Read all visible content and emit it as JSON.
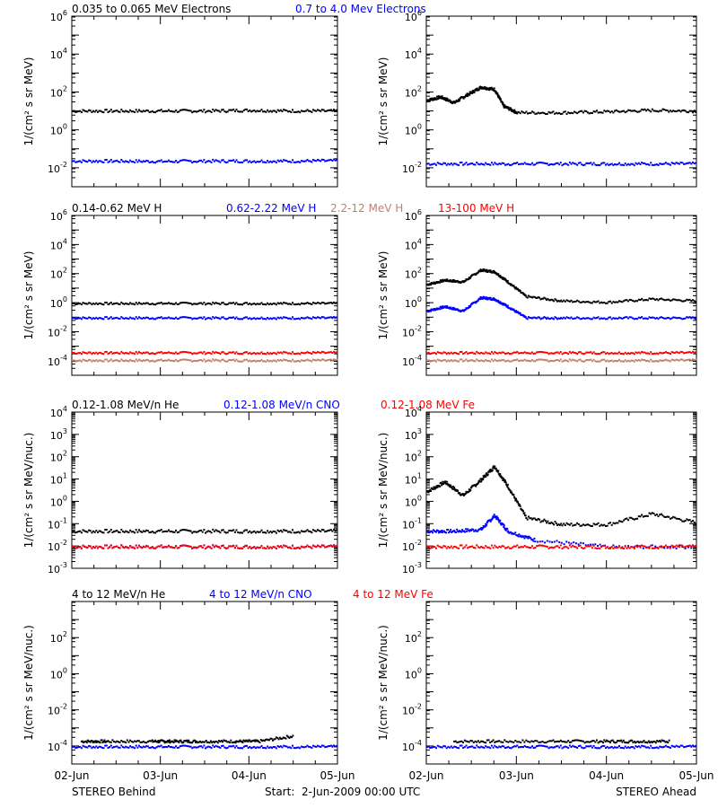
{
  "colors": {
    "black": "#000000",
    "blue": "#0000ff",
    "red": "#ff0000",
    "tan": "#c08070"
  },
  "rows": [
    {
      "legend": [
        {
          "text": "0.035 to 0.065 MeV Electrons",
          "color": "#000000"
        },
        {
          "text": "0.7 to 4.0 Mev Electrons",
          "color": "#0000ff"
        }
      ],
      "ylabel": "1/(cm² s sr MeV)",
      "ylog": [
        -3,
        6
      ],
      "yticks": [
        {
          "exp": -2,
          "label": "10",
          "sup": "-2"
        },
        {
          "exp": 0,
          "label": "10",
          "sup": "0"
        },
        {
          "exp": 2,
          "label": "10",
          "sup": "2"
        },
        {
          "exp": 4,
          "label": "10",
          "sup": "4"
        },
        {
          "exp": 6,
          "label": "10",
          "sup": "6"
        }
      ]
    },
    {
      "legend": [
        {
          "text": "0.14-0.62 MeV H",
          "color": "#000000"
        },
        {
          "text": "0.62-2.22 MeV H",
          "color": "#0000ff"
        },
        {
          "text": "2.2-12 MeV H",
          "color": "#c08070"
        },
        {
          "text": "13-100 MeV H",
          "color": "#ff0000"
        }
      ],
      "ylabel": "1/(cm² s sr MeV)",
      "ylog": [
        -5,
        6
      ],
      "yticks": [
        {
          "exp": -4,
          "label": "10",
          "sup": "-4"
        },
        {
          "exp": -2,
          "label": "10",
          "sup": "-2"
        },
        {
          "exp": 0,
          "label": "10",
          "sup": "0"
        },
        {
          "exp": 2,
          "label": "10",
          "sup": "2"
        },
        {
          "exp": 4,
          "label": "10",
          "sup": "4"
        },
        {
          "exp": 6,
          "label": "10",
          "sup": "6"
        }
      ]
    },
    {
      "legend": [
        {
          "text": "0.12-1.08 MeV/n He",
          "color": "#000000"
        },
        {
          "text": "0.12-1.08 MeV/n CNO",
          "color": "#0000ff"
        },
        {
          "text": "0.12-1.08 MeV Fe",
          "color": "#ff0000"
        }
      ],
      "ylabel": "1/(cm² s sr MeV/nuc.)",
      "ylog": [
        -3,
        4
      ],
      "yticks": [
        {
          "exp": -3,
          "label": "10",
          "sup": "-3"
        },
        {
          "exp": -2,
          "label": "10",
          "sup": "-2"
        },
        {
          "exp": -1,
          "label": "10",
          "sup": "-1"
        },
        {
          "exp": 0,
          "label": "10",
          "sup": "0"
        },
        {
          "exp": 1,
          "label": "10",
          "sup": "1"
        },
        {
          "exp": 2,
          "label": "10",
          "sup": "2"
        },
        {
          "exp": 3,
          "label": "10",
          "sup": "3"
        },
        {
          "exp": 4,
          "label": "10",
          "sup": "4"
        }
      ]
    },
    {
      "legend": [
        {
          "text": "4 to 12 MeV/n He",
          "color": "#000000"
        },
        {
          "text": "4 to 12 MeV/n CNO",
          "color": "#0000ff"
        },
        {
          "text": "4 to 12 MeV Fe",
          "color": "#ff0000"
        }
      ],
      "ylabel": "1/(cm² s sr MeV/nuc.)",
      "ylog": [
        -5,
        4
      ],
      "yticks": [
        {
          "exp": -4,
          "label": "10",
          "sup": "-4"
        },
        {
          "exp": -2,
          "label": "10",
          "sup": "-2"
        },
        {
          "exp": 0,
          "label": "10",
          "sup": "0"
        },
        {
          "exp": 2,
          "label": "10",
          "sup": "2"
        }
      ]
    }
  ],
  "xticks": [
    "02-Jun",
    "03-Jun",
    "04-Jun",
    "05-Jun"
  ],
  "footer": {
    "left": "STEREO Behind",
    "center": "Start:  2-Jun-2009 00:00 UTC",
    "right": "STEREO Ahead"
  },
  "chart_data": [
    {
      "type": "scatter",
      "panel": "row1-behind",
      "x_range_days": [
        0,
        3
      ],
      "ylog": [
        -3,
        6
      ],
      "series": [
        {
          "color": "#000000",
          "x": [
            0,
            0.5,
            1,
            1.5,
            2,
            2.5,
            3
          ],
          "y": [
            11,
            11,
            11,
            11,
            12,
            11,
            11
          ]
        },
        {
          "color": "#0000ff",
          "x": [
            0,
            0.5,
            1,
            1.5,
            2,
            2.5,
            3
          ],
          "y": [
            0.025,
            0.025,
            0.024,
            0.025,
            0.025,
            0.025,
            0.026
          ]
        }
      ]
    },
    {
      "type": "scatter",
      "panel": "row1-ahead",
      "x_range_days": [
        0,
        3
      ],
      "ylog": [
        -3,
        6
      ],
      "series": [
        {
          "color": "#000000",
          "x": [
            0,
            0.15,
            0.3,
            0.45,
            0.6,
            0.75,
            0.85,
            1,
            1.5,
            2,
            2.5,
            3
          ],
          "y": [
            40,
            60,
            30,
            80,
            200,
            150,
            20,
            9,
            9,
            10,
            12,
            11
          ]
        },
        {
          "color": "#0000ff",
          "x": [
            0,
            0.5,
            1,
            1.5,
            2,
            2.5,
            3
          ],
          "y": [
            0.018,
            0.018,
            0.018,
            0.018,
            0.018,
            0.018,
            0.018
          ]
        }
      ]
    },
    {
      "type": "scatter",
      "panel": "row2-behind",
      "x_range_days": [
        0,
        3
      ],
      "ylog": [
        -5,
        6
      ],
      "series": [
        {
          "color": "#000000",
          "x": [
            0,
            0.5,
            1,
            1.5,
            2,
            2.5,
            3
          ],
          "y": [
            1,
            1,
            1,
            1,
            1,
            1,
            1
          ]
        },
        {
          "color": "#0000ff",
          "x": [
            0,
            0.5,
            1,
            1.5,
            2,
            2.5,
            3
          ],
          "y": [
            0.1,
            0.1,
            0.1,
            0.1,
            0.1,
            0.1,
            0.1
          ]
        },
        {
          "color": "#ff0000",
          "x": [
            0,
            0.5,
            1,
            1.5,
            2,
            2.5,
            3
          ],
          "y": [
            0.0004,
            0.0004,
            0.0004,
            0.0004,
            0.0004,
            0.0004,
            0.0004
          ]
        },
        {
          "color": "#c08070",
          "x": [
            0,
            0.5,
            1,
            1.5,
            2,
            2.5,
            3
          ],
          "y": [
            0.00012,
            0.00012,
            0.00012,
            0.00012,
            0.00012,
            0.00012,
            0.00012
          ]
        }
      ]
    },
    {
      "type": "scatter",
      "panel": "row2-ahead",
      "x_range_days": [
        0,
        3
      ],
      "ylog": [
        -5,
        6
      ],
      "series": [
        {
          "color": "#000000",
          "x": [
            0,
            0.2,
            0.4,
            0.6,
            0.75,
            0.9,
            1.1,
            1.5,
            2,
            2.5,
            3
          ],
          "y": [
            20,
            40,
            30,
            200,
            150,
            30,
            3,
            1.5,
            1.2,
            2,
            1.5
          ]
        },
        {
          "color": "#0000ff",
          "x": [
            0,
            0.2,
            0.4,
            0.6,
            0.75,
            0.9,
            1.1,
            1.5,
            2,
            2.5,
            3
          ],
          "y": [
            0.3,
            0.6,
            0.3,
            2.5,
            2,
            0.6,
            0.1,
            0.1,
            0.1,
            0.1,
            0.1
          ]
        },
        {
          "color": "#ff0000",
          "x": [
            0,
            0.5,
            1,
            1.5,
            2,
            2.5,
            3
          ],
          "y": [
            0.0004,
            0.0004,
            0.0004,
            0.0004,
            0.0004,
            0.0004,
            0.0004
          ]
        },
        {
          "color": "#c08070",
          "x": [
            0,
            0.5,
            1,
            1.5,
            2,
            2.5,
            3
          ],
          "y": [
            0.00012,
            0.00012,
            0.00012,
            0.00012,
            0.00012,
            0.00012,
            0.00012
          ]
        }
      ]
    },
    {
      "type": "scatter",
      "panel": "row3-behind",
      "x_range_days": [
        0,
        3
      ],
      "ylog": [
        -3,
        4
      ],
      "series": [
        {
          "color": "#000000",
          "x": [
            0,
            0.5,
            1,
            1.5,
            2,
            2.5,
            3
          ],
          "y": [
            0.05,
            0.05,
            0.05,
            0.05,
            0.05,
            0.05,
            0.05
          ]
        },
        {
          "color": "#0000ff",
          "x": [
            0,
            0.5,
            1,
            1.5,
            2,
            2.5,
            3
          ],
          "y": [
            0.01,
            0.01,
            0.01,
            0.01,
            0.01,
            0.01,
            0.01
          ]
        },
        {
          "color": "#ff0000",
          "x": [
            0,
            0.5,
            1,
            1.5,
            2,
            2.5,
            3
          ],
          "y": [
            0.01,
            0.01,
            0.01,
            0.01,
            0.01,
            0.01,
            0.01
          ]
        }
      ]
    },
    {
      "type": "scatter",
      "panel": "row3-ahead",
      "x_range_days": [
        0,
        3
      ],
      "ylog": [
        -3,
        4
      ],
      "series": [
        {
          "color": "#000000",
          "x": [
            0,
            0.2,
            0.4,
            0.6,
            0.75,
            0.9,
            1.1,
            1.5,
            2,
            2.5,
            3
          ],
          "y": [
            3,
            8,
            2,
            10,
            40,
            5,
            0.2,
            0.1,
            0.1,
            0.3,
            0.12
          ]
        },
        {
          "color": "#0000ff",
          "x": [
            0,
            0.3,
            0.6,
            0.75,
            0.9,
            1.2,
            2,
            3
          ],
          "y": [
            0.05,
            0.05,
            0.06,
            0.25,
            0.05,
            0.02,
            0.01,
            0.01
          ]
        },
        {
          "color": "#ff0000",
          "x": [
            0,
            0.5,
            1,
            1.5,
            2,
            2.5,
            3
          ],
          "y": [
            0.01,
            0.01,
            0.01,
            0.01,
            0.01,
            0.01,
            0.01
          ]
        }
      ]
    },
    {
      "type": "scatter",
      "panel": "row4-behind",
      "x_range_days": [
        0,
        3
      ],
      "ylog": [
        -5,
        4
      ],
      "series": [
        {
          "color": "#000000",
          "x": [
            0.1,
            0.4,
            0.9,
            1.1,
            1.4,
            1.8,
            2.1,
            2.5
          ],
          "y": [
            0.0002,
            0.0002,
            0.0002,
            0.0002,
            0.0002,
            0.0002,
            0.0002,
            0.0004
          ]
        },
        {
          "color": "#0000ff",
          "x": [
            0,
            0.5,
            1,
            1.5,
            2,
            2.5,
            3
          ],
          "y": [
            0.0001,
            0.0001,
            0.0001,
            0.0001,
            0.0001,
            0.0001,
            0.0001
          ]
        }
      ]
    },
    {
      "type": "scatter",
      "panel": "row4-ahead",
      "x_range_days": [
        0,
        3
      ],
      "ylog": [
        -5,
        4
      ],
      "series": [
        {
          "color": "#000000",
          "x": [
            0.3,
            0.8,
            1.4,
            1.9,
            2.3,
            2.7
          ],
          "y": [
            0.0002,
            0.0002,
            0.0002,
            0.0002,
            0.0002,
            0.0002
          ]
        },
        {
          "color": "#0000ff",
          "x": [
            0,
            0.5,
            1,
            1.5,
            2,
            2.5,
            3
          ],
          "y": [
            0.0001,
            0.0001,
            0.0001,
            0.0001,
            0.0001,
            0.0001,
            0.0001
          ]
        }
      ]
    }
  ]
}
